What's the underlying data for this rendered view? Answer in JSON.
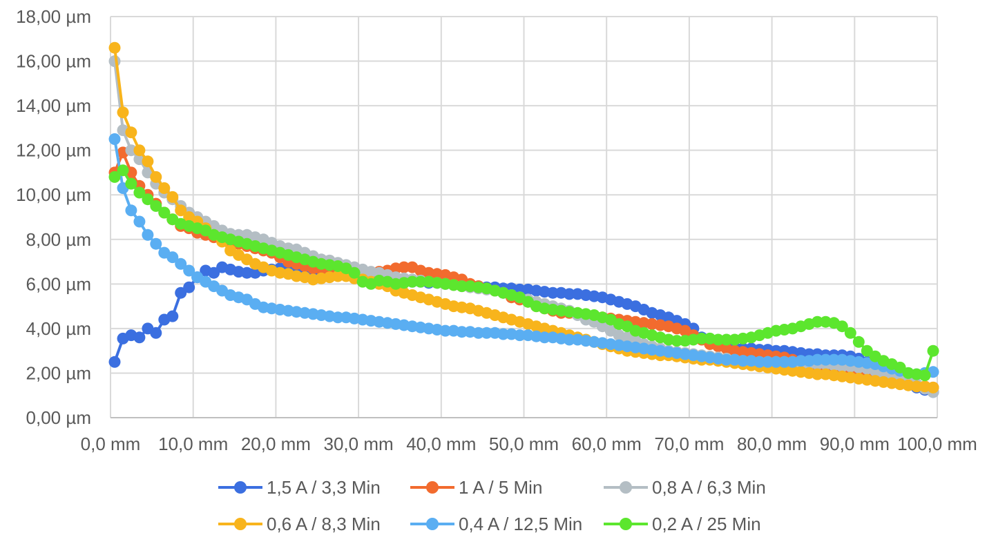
{
  "chart_data": {
    "type": "line",
    "title": "",
    "xlabel": "",
    "ylabel": "",
    "xlim": [
      0,
      100
    ],
    "ylim": [
      0,
      18
    ],
    "grid": true,
    "legend_position": "bottom",
    "x_ticks": [
      0,
      10,
      20,
      30,
      40,
      50,
      60,
      70,
      80,
      90,
      100
    ],
    "x_tick_labels": [
      "0,0 mm",
      "10,0 mm",
      "20,0 mm",
      "30,0 mm",
      "40,0 mm",
      "50,0 mm",
      "60,0 mm",
      "70,0 mm",
      "80,0 mm",
      "90,0 mm",
      "100,0 mm"
    ],
    "y_ticks": [
      0,
      2,
      4,
      6,
      8,
      10,
      12,
      14,
      16,
      18
    ],
    "y_tick_labels": [
      "0,00 µm",
      "2,00 µm",
      "4,00 µm",
      "6,00 µm",
      "8,00 µm",
      "10,00 µm",
      "12,00 µm",
      "14,00 µm",
      "16,00 µm",
      "18,00 µm"
    ],
    "x": [
      0.5,
      1.5,
      2.5,
      3.5,
      4.5,
      5.5,
      6.5,
      7.5,
      8.5,
      9.5,
      10.5,
      11.5,
      12.5,
      13.5,
      14.5,
      15.5,
      16.5,
      17.5,
      18.5,
      19.5,
      20.5,
      21.5,
      22.5,
      23.5,
      24.5,
      25.5,
      26.5,
      27.5,
      28.5,
      29.5,
      30.5,
      31.5,
      32.5,
      33.5,
      34.5,
      35.5,
      36.5,
      37.5,
      38.5,
      39.5,
      40.5,
      41.5,
      42.5,
      43.5,
      44.5,
      45.5,
      46.5,
      47.5,
      48.5,
      49.5,
      50.5,
      51.5,
      52.5,
      53.5,
      54.5,
      55.5,
      56.5,
      57.5,
      58.5,
      59.5,
      60.5,
      61.5,
      62.5,
      63.5,
      64.5,
      65.5,
      66.5,
      67.5,
      68.5,
      69.5,
      70.5,
      71.5,
      72.5,
      73.5,
      74.5,
      75.5,
      76.5,
      77.5,
      78.5,
      79.5,
      80.5,
      81.5,
      82.5,
      83.5,
      84.5,
      85.5,
      86.5,
      87.5,
      88.5,
      89.5,
      90.5,
      91.5,
      92.5,
      93.5,
      94.5,
      95.5,
      96.5,
      97.5,
      98.5,
      99.5
    ],
    "series": [
      {
        "name": "1,5 A / 3,3 Min",
        "color": "#3b6fe0",
        "values": [
          2.5,
          3.55,
          3.7,
          3.6,
          4.0,
          3.8,
          4.4,
          4.55,
          5.6,
          5.85,
          6.3,
          6.6,
          6.5,
          6.75,
          6.65,
          6.55,
          6.5,
          6.5,
          6.6,
          6.65,
          6.7,
          6.75,
          6.7,
          6.6,
          6.55,
          6.5,
          6.5,
          6.45,
          6.4,
          6.35,
          6.3,
          6.25,
          6.2,
          6.2,
          6.15,
          6.15,
          6.1,
          6.1,
          6.05,
          6.05,
          6.0,
          6.0,
          5.95,
          5.95,
          5.9,
          5.85,
          5.85,
          5.8,
          5.8,
          5.75,
          5.75,
          5.7,
          5.65,
          5.6,
          5.6,
          5.55,
          5.55,
          5.5,
          5.45,
          5.4,
          5.3,
          5.2,
          5.1,
          5.0,
          4.85,
          4.7,
          4.6,
          4.5,
          4.35,
          4.2,
          4.0,
          3.6,
          3.4,
          3.3,
          3.2,
          3.15,
          3.1,
          3.1,
          3.05,
          3.05,
          3.0,
          3.0,
          2.95,
          2.9,
          2.85,
          2.85,
          2.8,
          2.8,
          2.8,
          2.75,
          2.65,
          2.5,
          2.3,
          2.1,
          1.9,
          1.7,
          1.5,
          1.35,
          1.25,
          1.15
        ]
      },
      {
        "name": "1 A / 5 Min",
        "color": "#f26b2e",
        "values": [
          11.0,
          11.9,
          11.0,
          10.4,
          10.0,
          9.6,
          9.2,
          8.9,
          8.6,
          8.5,
          8.3,
          8.2,
          8.1,
          8.0,
          7.9,
          7.8,
          7.7,
          7.6,
          7.5,
          7.4,
          7.2,
          7.0,
          6.9,
          6.8,
          6.7,
          6.65,
          6.6,
          6.6,
          6.6,
          6.55,
          6.5,
          6.5,
          6.55,
          6.6,
          6.7,
          6.75,
          6.75,
          6.6,
          6.5,
          6.45,
          6.4,
          6.3,
          6.2,
          6.0,
          5.9,
          5.8,
          5.7,
          5.6,
          5.4,
          5.3,
          5.2,
          5.0,
          4.9,
          4.8,
          4.7,
          4.7,
          4.65,
          4.6,
          4.55,
          4.5,
          4.45,
          4.4,
          4.35,
          4.3,
          4.25,
          4.2,
          4.15,
          4.1,
          4.0,
          3.9,
          3.7,
          3.5,
          3.3,
          3.2,
          3.1,
          3.0,
          2.95,
          2.9,
          2.85,
          2.8,
          2.75,
          2.7,
          2.6,
          2.5,
          2.4,
          2.3,
          2.2,
          2.1,
          2.0,
          1.95,
          1.9,
          1.85,
          1.8,
          1.75,
          1.7,
          1.6,
          1.5,
          1.45,
          1.4,
          1.35
        ]
      },
      {
        "name": "0,8 A / 6,3 Min",
        "color": "#b4bec4",
        "values": [
          16.0,
          12.9,
          12.0,
          11.6,
          11.0,
          10.5,
          10.1,
          9.8,
          9.5,
          9.2,
          9.0,
          8.8,
          8.6,
          8.4,
          8.25,
          8.2,
          8.2,
          8.1,
          8.0,
          7.85,
          7.7,
          7.6,
          7.55,
          7.4,
          7.25,
          7.1,
          7.05,
          6.95,
          6.85,
          6.75,
          6.65,
          6.55,
          6.5,
          6.4,
          6.3,
          6.25,
          6.2,
          6.15,
          6.1,
          6.05,
          6.0,
          5.95,
          5.9,
          5.85,
          5.8,
          5.75,
          5.7,
          5.6,
          5.5,
          5.4,
          5.3,
          5.2,
          5.1,
          5.0,
          4.9,
          4.8,
          4.6,
          4.4,
          4.3,
          4.1,
          3.9,
          3.7,
          3.6,
          3.45,
          3.3,
          3.2,
          3.1,
          3.0,
          2.95,
          2.9,
          2.85,
          2.8,
          2.75,
          2.7,
          2.65,
          2.6,
          2.55,
          2.5,
          2.5,
          2.5,
          2.5,
          2.5,
          2.5,
          2.45,
          2.4,
          2.4,
          2.4,
          2.35,
          2.3,
          2.3,
          2.25,
          2.2,
          2.1,
          2.0,
          1.9,
          1.8,
          1.7,
          1.5,
          1.3,
          1.15
        ]
      },
      {
        "name": "0,6 A / 8,3 Min",
        "color": "#f8b41c",
        "values": [
          16.6,
          13.7,
          12.8,
          12.0,
          11.5,
          10.8,
          10.3,
          9.9,
          9.3,
          9.0,
          8.8,
          8.5,
          8.2,
          7.9,
          7.5,
          7.3,
          7.1,
          6.9,
          6.75,
          6.6,
          6.5,
          6.45,
          6.35,
          6.3,
          6.2,
          6.25,
          6.3,
          6.35,
          6.35,
          6.25,
          6.2,
          6.1,
          6.0,
          5.9,
          5.7,
          5.6,
          5.5,
          5.4,
          5.3,
          5.2,
          5.1,
          5.0,
          4.95,
          4.9,
          4.8,
          4.7,
          4.6,
          4.5,
          4.4,
          4.3,
          4.2,
          4.1,
          4.0,
          3.9,
          3.8,
          3.7,
          3.6,
          3.5,
          3.4,
          3.3,
          3.2,
          3.1,
          3.0,
          2.95,
          2.9,
          2.85,
          2.8,
          2.8,
          2.75,
          2.7,
          2.65,
          2.6,
          2.6,
          2.55,
          2.5,
          2.45,
          2.4,
          2.35,
          2.3,
          2.25,
          2.2,
          2.15,
          2.1,
          2.05,
          2.0,
          1.95,
          1.95,
          1.9,
          1.85,
          1.8,
          1.75,
          1.7,
          1.65,
          1.6,
          1.55,
          1.5,
          1.45,
          1.4,
          1.4,
          1.35
        ]
      },
      {
        "name": "0,4 A / 12,5 Min",
        "color": "#5aaef2",
        "values": [
          12.5,
          10.3,
          9.3,
          8.8,
          8.2,
          7.8,
          7.4,
          7.2,
          6.9,
          6.6,
          6.3,
          6.1,
          5.9,
          5.7,
          5.5,
          5.4,
          5.3,
          5.1,
          4.95,
          4.9,
          4.85,
          4.8,
          4.75,
          4.7,
          4.65,
          4.6,
          4.55,
          4.5,
          4.5,
          4.45,
          4.4,
          4.35,
          4.3,
          4.25,
          4.2,
          4.15,
          4.1,
          4.05,
          4.0,
          3.95,
          3.9,
          3.9,
          3.85,
          3.85,
          3.8,
          3.8,
          3.8,
          3.75,
          3.75,
          3.7,
          3.7,
          3.65,
          3.6,
          3.6,
          3.55,
          3.5,
          3.5,
          3.45,
          3.4,
          3.35,
          3.3,
          3.25,
          3.2,
          3.15,
          3.1,
          3.05,
          3.0,
          2.95,
          2.9,
          2.85,
          2.8,
          2.75,
          2.7,
          2.65,
          2.6,
          2.6,
          2.55,
          2.55,
          2.5,
          2.5,
          2.5,
          2.5,
          2.5,
          2.55,
          2.55,
          2.6,
          2.6,
          2.6,
          2.6,
          2.55,
          2.5,
          2.45,
          2.4,
          2.3,
          2.2,
          2.1,
          2.0,
          1.95,
          2.0,
          2.05
        ]
      },
      {
        "name": "0,2 A / 25 Min",
        "color": "#5ce62e",
        "values": [
          10.8,
          11.1,
          10.5,
          10.1,
          9.8,
          9.5,
          9.2,
          8.9,
          8.7,
          8.6,
          8.5,
          8.4,
          8.2,
          8.1,
          8.0,
          7.9,
          7.8,
          7.7,
          7.6,
          7.5,
          7.4,
          7.3,
          7.2,
          7.1,
          7.0,
          6.9,
          6.85,
          6.8,
          6.7,
          6.5,
          6.1,
          6.0,
          6.15,
          6.1,
          6.0,
          6.05,
          6.1,
          6.1,
          6.1,
          6.05,
          6.0,
          5.95,
          5.9,
          5.9,
          5.85,
          5.8,
          5.7,
          5.6,
          5.5,
          5.4,
          5.2,
          5.0,
          4.9,
          4.85,
          4.8,
          4.75,
          4.7,
          4.65,
          4.6,
          4.5,
          4.4,
          4.2,
          4.1,
          3.9,
          3.8,
          3.7,
          3.6,
          3.5,
          3.45,
          3.45,
          3.5,
          3.55,
          3.55,
          3.5,
          3.5,
          3.5,
          3.55,
          3.6,
          3.7,
          3.8,
          3.9,
          3.95,
          4.0,
          4.1,
          4.2,
          4.3,
          4.3,
          4.25,
          4.1,
          3.8,
          3.4,
          3.0,
          2.75,
          2.55,
          2.4,
          2.25,
          2.0,
          1.95,
          1.9,
          3.0
        ]
      }
    ]
  }
}
